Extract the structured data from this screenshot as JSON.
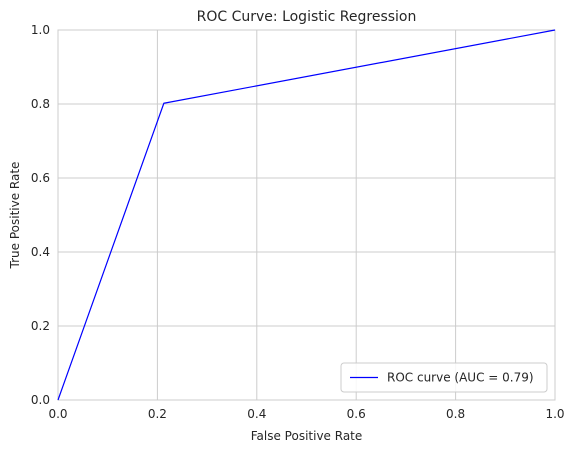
{
  "chart_data": {
    "type": "line",
    "title": "ROC Curve: Logistic Regression",
    "xlabel": "False Positive Rate",
    "ylabel": "True Positive Rate",
    "xlim": [
      0,
      1
    ],
    "ylim": [
      0,
      1
    ],
    "xticks": [
      "0.0",
      "0.2",
      "0.4",
      "0.6",
      "0.8",
      "1.0"
    ],
    "yticks": [
      "0.0",
      "0.2",
      "0.4",
      "0.6",
      "0.8",
      "1.0"
    ],
    "grid": true,
    "legend_position": "lower-right",
    "series": [
      {
        "name": "ROC curve (AUC = 0.79)",
        "color": "#0000ff",
        "x": [
          0.0,
          0.213,
          1.0
        ],
        "y": [
          0.0,
          0.802,
          1.0
        ]
      }
    ]
  },
  "colors": {
    "grid": "#cccccc",
    "axes_edge": "#cccccc",
    "text": "#262626"
  }
}
